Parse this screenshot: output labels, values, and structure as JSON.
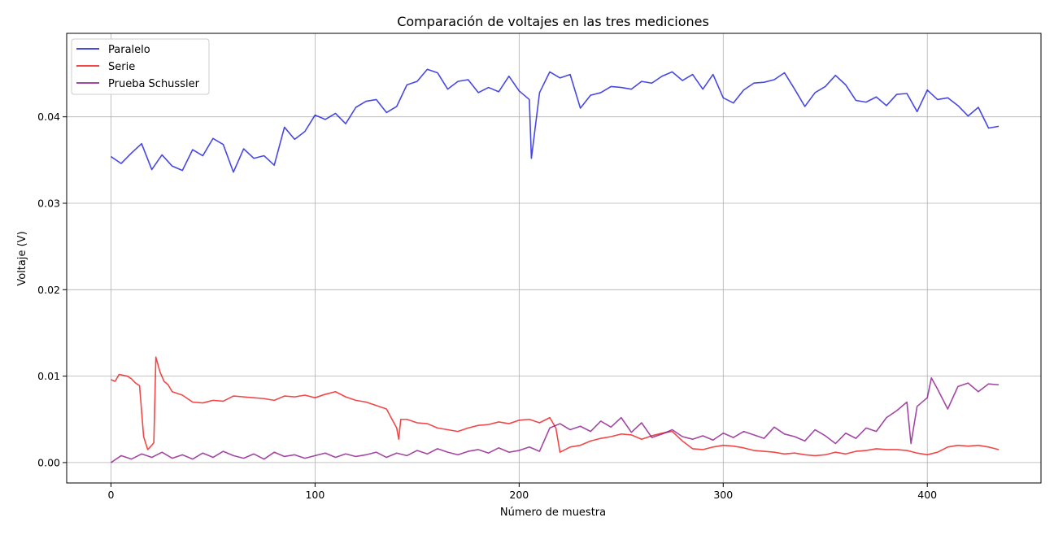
{
  "chart_data": {
    "type": "line",
    "title": "Comparación de voltajes en las tres mediciones",
    "xlabel": "Número de muestra",
    "ylabel": "Voltaje (V)",
    "xlim": [
      -21.7,
      455.7
    ],
    "ylim": [
      -0.00236,
      0.04966
    ],
    "x_ticks": [
      0,
      100,
      200,
      300,
      400
    ],
    "y_ticks": [
      0.0,
      0.01,
      0.02,
      0.03,
      0.04
    ],
    "y_tick_labels": [
      "0.00",
      "0.01",
      "0.02",
      "0.03",
      "0.04"
    ],
    "grid": true,
    "legend_position": "top-left",
    "series": [
      {
        "name": "Paralelo",
        "color": "#0000dd",
        "x": [
          0,
          5,
          10,
          15,
          20,
          25,
          30,
          35,
          40,
          45,
          50,
          55,
          60,
          65,
          70,
          75,
          80,
          85,
          90,
          95,
          100,
          105,
          110,
          115,
          120,
          125,
          130,
          135,
          140,
          145,
          150,
          155,
          160,
          165,
          170,
          175,
          180,
          185,
          190,
          195,
          200,
          205,
          206,
          210,
          215,
          220,
          225,
          230,
          235,
          240,
          245,
          250,
          255,
          260,
          265,
          270,
          275,
          280,
          285,
          290,
          295,
          300,
          305,
          310,
          315,
          320,
          325,
          330,
          335,
          340,
          345,
          350,
          355,
          360,
          365,
          370,
          375,
          380,
          385,
          390,
          395,
          400,
          405,
          410,
          415,
          420,
          425,
          430,
          435
        ],
        "values": [
          0.0354,
          0.0346,
          0.0358,
          0.0369,
          0.0339,
          0.0356,
          0.0343,
          0.0338,
          0.0362,
          0.0355,
          0.0375,
          0.0368,
          0.0336,
          0.0363,
          0.0352,
          0.0355,
          0.0344,
          0.0388,
          0.0374,
          0.0383,
          0.0402,
          0.0397,
          0.0404,
          0.0392,
          0.0411,
          0.0418,
          0.042,
          0.0405,
          0.0412,
          0.0437,
          0.0441,
          0.0455,
          0.0451,
          0.0432,
          0.0441,
          0.0443,
          0.0428,
          0.0434,
          0.0429,
          0.0447,
          0.043,
          0.042,
          0.0352,
          0.0428,
          0.0452,
          0.0445,
          0.0449,
          0.041,
          0.0425,
          0.0428,
          0.0435,
          0.0434,
          0.0432,
          0.0441,
          0.0439,
          0.0447,
          0.0452,
          0.0442,
          0.0449,
          0.0432,
          0.0449,
          0.0422,
          0.0416,
          0.0431,
          0.0439,
          0.044,
          0.0443,
          0.0451,
          0.0432,
          0.0412,
          0.0428,
          0.0435,
          0.0448,
          0.0437,
          0.0419,
          0.0417,
          0.0423,
          0.0413,
          0.0426,
          0.0427,
          0.0406,
          0.0431,
          0.042,
          0.0422,
          0.0413,
          0.0401,
          0.0411,
          0.0387,
          0.0389
        ]
      },
      {
        "name": "Serie",
        "color": "#ee0000",
        "x": [
          0,
          2,
          4,
          6,
          8,
          10,
          12,
          14,
          16,
          18,
          20,
          21,
          22,
          24,
          26,
          28,
          30,
          35,
          40,
          45,
          50,
          55,
          60,
          65,
          70,
          75,
          80,
          85,
          90,
          95,
          100,
          105,
          110,
          115,
          120,
          125,
          130,
          135,
          140,
          141,
          142,
          145,
          150,
          155,
          160,
          165,
          170,
          175,
          180,
          185,
          190,
          195,
          200,
          205,
          210,
          215,
          218,
          220,
          225,
          230,
          235,
          240,
          245,
          250,
          255,
          260,
          265,
          270,
          275,
          280,
          285,
          290,
          295,
          300,
          305,
          310,
          315,
          320,
          325,
          330,
          335,
          340,
          345,
          350,
          355,
          360,
          365,
          370,
          375,
          380,
          385,
          390,
          395,
          400,
          405,
          410,
          415,
          420,
          425,
          430,
          435
        ],
        "values": [
          0.0096,
          0.0094,
          0.0102,
          0.0101,
          0.01,
          0.0097,
          0.0092,
          0.0089,
          0.003,
          0.0015,
          0.002,
          0.0023,
          0.0122,
          0.0105,
          0.0094,
          0.009,
          0.0082,
          0.0078,
          0.007,
          0.0069,
          0.0072,
          0.0071,
          0.0077,
          0.0076,
          0.0075,
          0.0074,
          0.0072,
          0.0077,
          0.0076,
          0.0078,
          0.0075,
          0.0079,
          0.0082,
          0.0076,
          0.0072,
          0.007,
          0.0066,
          0.0062,
          0.004,
          0.0027,
          0.005,
          0.005,
          0.0046,
          0.0045,
          0.004,
          0.0038,
          0.0036,
          0.004,
          0.0043,
          0.0044,
          0.0047,
          0.0045,
          0.0049,
          0.005,
          0.0046,
          0.0052,
          0.004,
          0.0012,
          0.0018,
          0.002,
          0.0025,
          0.0028,
          0.003,
          0.0033,
          0.0032,
          0.0027,
          0.0031,
          0.0034,
          0.0036,
          0.0025,
          0.0016,
          0.0015,
          0.0018,
          0.002,
          0.0019,
          0.0017,
          0.0014,
          0.0013,
          0.0012,
          0.001,
          0.0011,
          0.0009,
          0.0008,
          0.0009,
          0.0012,
          0.001,
          0.0013,
          0.0014,
          0.0016,
          0.0015,
          0.0015,
          0.0014,
          0.0011,
          0.0009,
          0.0012,
          0.0018,
          0.002,
          0.0019,
          0.002,
          0.0018,
          0.0015
        ]
      },
      {
        "name": "Prueba Schussler",
        "color": "#800080",
        "x": [
          0,
          5,
          10,
          15,
          20,
          25,
          30,
          35,
          40,
          45,
          50,
          55,
          60,
          65,
          70,
          75,
          80,
          85,
          90,
          95,
          100,
          105,
          110,
          115,
          120,
          125,
          130,
          135,
          140,
          145,
          150,
          155,
          160,
          165,
          170,
          175,
          180,
          185,
          190,
          195,
          200,
          205,
          210,
          215,
          220,
          225,
          230,
          235,
          240,
          245,
          250,
          255,
          260,
          265,
          270,
          275,
          280,
          285,
          290,
          295,
          300,
          305,
          310,
          315,
          320,
          325,
          330,
          335,
          340,
          345,
          350,
          355,
          360,
          365,
          370,
          375,
          380,
          385,
          390,
          392,
          395,
          400,
          402,
          405,
          410,
          415,
          420,
          425,
          430,
          435
        ],
        "values": [
          0.0,
          0.0008,
          0.0004,
          0.001,
          0.0006,
          0.0012,
          0.0005,
          0.0009,
          0.0004,
          0.0011,
          0.0006,
          0.0013,
          0.0008,
          0.0005,
          0.001,
          0.0004,
          0.0012,
          0.0007,
          0.0009,
          0.0005,
          0.0008,
          0.0011,
          0.0006,
          0.001,
          0.0007,
          0.0009,
          0.0012,
          0.0006,
          0.0011,
          0.0008,
          0.0014,
          0.001,
          0.0016,
          0.0012,
          0.0009,
          0.0013,
          0.0015,
          0.0011,
          0.0017,
          0.0012,
          0.0014,
          0.0018,
          0.0013,
          0.004,
          0.0045,
          0.0038,
          0.0042,
          0.0036,
          0.0048,
          0.0041,
          0.0052,
          0.0035,
          0.0046,
          0.0029,
          0.0033,
          0.0038,
          0.003,
          0.0027,
          0.0031,
          0.0026,
          0.0034,
          0.0029,
          0.0036,
          0.0032,
          0.0028,
          0.0041,
          0.0033,
          0.003,
          0.0025,
          0.0038,
          0.0031,
          0.0022,
          0.0034,
          0.0028,
          0.004,
          0.0036,
          0.0052,
          0.006,
          0.007,
          0.0022,
          0.0065,
          0.0075,
          0.0098,
          0.0085,
          0.0062,
          0.0088,
          0.0092,
          0.0082,
          0.0091,
          0.009
        ]
      }
    ]
  }
}
